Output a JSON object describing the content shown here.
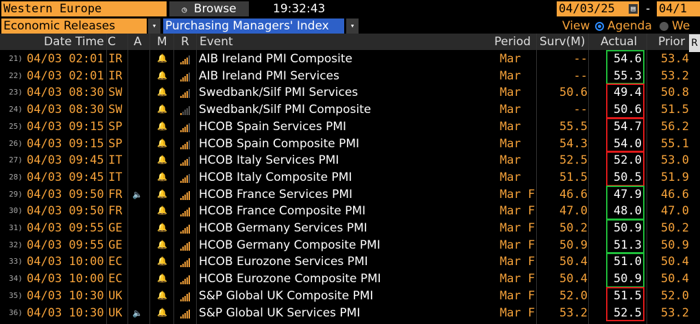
{
  "toolbar": {
    "region": "Western Europe",
    "browse_label": "Browse",
    "time": "19:32:43",
    "start_date": "04/03/25",
    "date_sep": "-",
    "end_date": "04/1",
    "category": "Economic Releases",
    "subcategory": "Purchasing Managers' Index",
    "view_label": "View",
    "view_option_1": "Agenda",
    "view_option_2": "We",
    "side_tab": "R"
  },
  "columns": {
    "datetime": "Date Time",
    "c": "C",
    "a": "A",
    "m": "M",
    "r": "R",
    "event": "Event",
    "period": "Period",
    "surv": "Surv(M)",
    "actual": "Actual",
    "prior": "Prior"
  },
  "rows": [
    {
      "num": "21)",
      "datetime": "04/03 02:01",
      "country": "IR",
      "speaker": false,
      "signal": 4,
      "event": "AIB Ireland PMI Composite",
      "period": "Mar",
      "surv": "--",
      "actual": "54.6",
      "prior": "53.4",
      "box": "#1fbf3a"
    },
    {
      "num": "22)",
      "datetime": "04/03 02:01",
      "country": "IR",
      "speaker": false,
      "signal": 4,
      "event": "AIB Ireland PMI Services",
      "period": "Mar",
      "surv": "--",
      "actual": "55.3",
      "prior": "53.2",
      "box": "#1fbf3a"
    },
    {
      "num": "23)",
      "datetime": "04/03 08:30",
      "country": "SW",
      "speaker": false,
      "signal": 4,
      "event": "Swedbank/Silf PMI Services",
      "period": "Mar",
      "surv": "50.6",
      "actual": "49.4",
      "prior": "50.8",
      "box": "#e01a1a"
    },
    {
      "num": "24)",
      "datetime": "04/03 08:30",
      "country": "SW",
      "speaker": false,
      "signal": 1,
      "event": "Swedbank/Silf PMI Composite",
      "period": "Mar",
      "surv": "--",
      "actual": "50.6",
      "prior": "51.5",
      "box": "#e01a1a"
    },
    {
      "num": "25)",
      "datetime": "04/03 09:15",
      "country": "SP",
      "speaker": false,
      "signal": 4,
      "event": "HCOB Spain Services PMI",
      "period": "Mar",
      "surv": "55.5",
      "actual": "54.7",
      "prior": "56.2",
      "box": "#e01a1a"
    },
    {
      "num": "26)",
      "datetime": "04/03 09:15",
      "country": "SP",
      "speaker": false,
      "signal": 4,
      "event": "HCOB Spain Composite PMI",
      "period": "Mar",
      "surv": "54.3",
      "actual": "54.0",
      "prior": "55.1",
      "box": "#e01a1a"
    },
    {
      "num": "27)",
      "datetime": "04/03 09:45",
      "country": "IT",
      "speaker": false,
      "signal": 4,
      "event": "HCOB Italy Services PMI",
      "period": "Mar",
      "surv": "52.5",
      "actual": "52.0",
      "prior": "53.0",
      "box": "#e01a1a"
    },
    {
      "num": "28)",
      "datetime": "04/03 09:45",
      "country": "IT",
      "speaker": false,
      "signal": 4,
      "event": "HCOB Italy Composite PMI",
      "period": "Mar",
      "surv": "51.5",
      "actual": "50.5",
      "prior": "51.9",
      "box": "#e01a1a"
    },
    {
      "num": "29)",
      "datetime": "04/03 09:50",
      "country": "FR",
      "speaker": true,
      "signal": 5,
      "event": "HCOB France Services PMI",
      "period": "Mar F",
      "surv": "46.6",
      "actual": "47.9",
      "prior": "46.6",
      "box": "#1fbf3a"
    },
    {
      "num": "30)",
      "datetime": "04/03 09:50",
      "country": "FR",
      "speaker": false,
      "signal": 5,
      "event": "HCOB France Composite PMI",
      "period": "Mar F",
      "surv": "47.0",
      "actual": "48.0",
      "prior": "47.0",
      "box": "#1fbf3a"
    },
    {
      "num": "31)",
      "datetime": "04/03 09:55",
      "country": "GE",
      "speaker": false,
      "signal": 5,
      "event": "HCOB Germany Services PMI",
      "period": "Mar F",
      "surv": "50.2",
      "actual": "50.9",
      "prior": "50.2",
      "box": "#1fbf3a"
    },
    {
      "num": "32)",
      "datetime": "04/03 09:55",
      "country": "GE",
      "speaker": false,
      "signal": 5,
      "event": "HCOB Germany Composite PMI",
      "period": "Mar F",
      "surv": "50.9",
      "actual": "51.3",
      "prior": "50.9",
      "box": "#1fbf3a"
    },
    {
      "num": "33)",
      "datetime": "04/03 10:00",
      "country": "EC",
      "speaker": false,
      "signal": 5,
      "event": "HCOB Eurozone Services PMI",
      "period": "Mar F",
      "surv": "50.4",
      "actual": "51.0",
      "prior": "50.4",
      "box": "#1fbf3a"
    },
    {
      "num": "34)",
      "datetime": "04/03 10:00",
      "country": "EC",
      "speaker": false,
      "signal": 5,
      "event": "HCOB Eurozone Composite PMI",
      "period": "Mar F",
      "surv": "50.4",
      "actual": "50.9",
      "prior": "50.4",
      "box": "#1fbf3a"
    },
    {
      "num": "35)",
      "datetime": "04/03 10:30",
      "country": "UK",
      "speaker": false,
      "signal": 5,
      "event": "S&P Global UK Composite PMI",
      "period": "Mar F",
      "surv": "52.0",
      "actual": "51.5",
      "prior": "52.0",
      "box": "#e01a1a"
    },
    {
      "num": "36)",
      "datetime": "04/03 10:30",
      "country": "UK",
      "speaker": true,
      "signal": 5,
      "event": "S&P Global UK Services PMI",
      "period": "Mar F",
      "surv": "53.2",
      "actual": "52.5",
      "prior": "53.2",
      "box": "#e01a1a"
    }
  ]
}
